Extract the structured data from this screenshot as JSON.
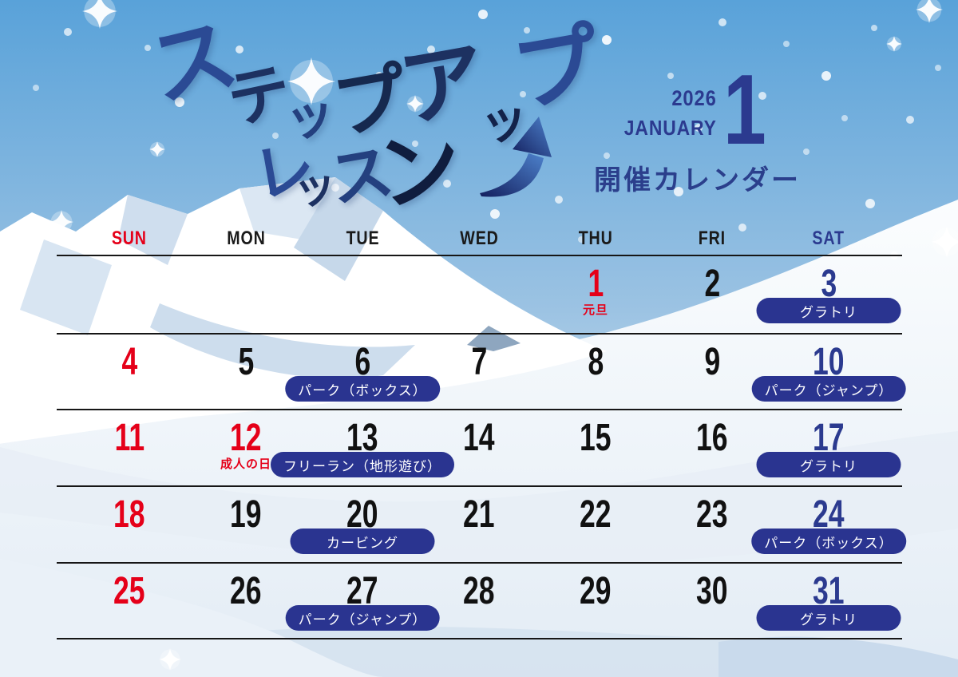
{
  "header": {
    "title_line1": "ステップアップ",
    "title_line2": "レッスン",
    "arrow_icon": "step-up-swoosh-arrow",
    "year": "2026",
    "month_name": "JANUARY",
    "month_number": "1",
    "subtitle": "開催カレンダー"
  },
  "calendar": {
    "weekdays": [
      "SUN",
      "MON",
      "TUE",
      "WED",
      "THU",
      "FRI",
      "SAT"
    ],
    "weeks": [
      [
        {
          "date": ""
        },
        {
          "date": ""
        },
        {
          "date": ""
        },
        {
          "date": ""
        },
        {
          "date": "1",
          "holiday": "元旦"
        },
        {
          "date": "2"
        },
        {
          "date": "3",
          "badge": "グラトリ"
        }
      ],
      [
        {
          "date": "4"
        },
        {
          "date": "5"
        },
        {
          "date": "6",
          "badge": "パーク（ボックス）"
        },
        {
          "date": "7"
        },
        {
          "date": "8"
        },
        {
          "date": "9"
        },
        {
          "date": "10",
          "badge": "パーク（ジャンプ）"
        }
      ],
      [
        {
          "date": "11"
        },
        {
          "date": "12",
          "holiday": "成人の日"
        },
        {
          "date": "13",
          "badge": "フリーラン（地形遊び）"
        },
        {
          "date": "14"
        },
        {
          "date": "15"
        },
        {
          "date": "16"
        },
        {
          "date": "17",
          "badge": "グラトリ"
        }
      ],
      [
        {
          "date": "18"
        },
        {
          "date": "19"
        },
        {
          "date": "20",
          "badge": "カービング"
        },
        {
          "date": "21"
        },
        {
          "date": "22"
        },
        {
          "date": "23"
        },
        {
          "date": "24",
          "badge": "パーク（ボックス）"
        }
      ],
      [
        {
          "date": "25"
        },
        {
          "date": "26"
        },
        {
          "date": "27",
          "badge": "パーク（ジャンプ）"
        },
        {
          "date": "28"
        },
        {
          "date": "29"
        },
        {
          "date": "30"
        },
        {
          "date": "31",
          "badge": "グラトリ"
        }
      ]
    ]
  },
  "colors": {
    "sunday_red": "#e50019",
    "weekday_black": "#111111",
    "saturday_navy": "#2b3a8f",
    "badge_navy": "#2a3490",
    "title_navy": "#2b4a94",
    "title_dark_navy": "#16294f",
    "sky_top": "#59a2d9",
    "sky_bottom": "#b9d5eb"
  }
}
